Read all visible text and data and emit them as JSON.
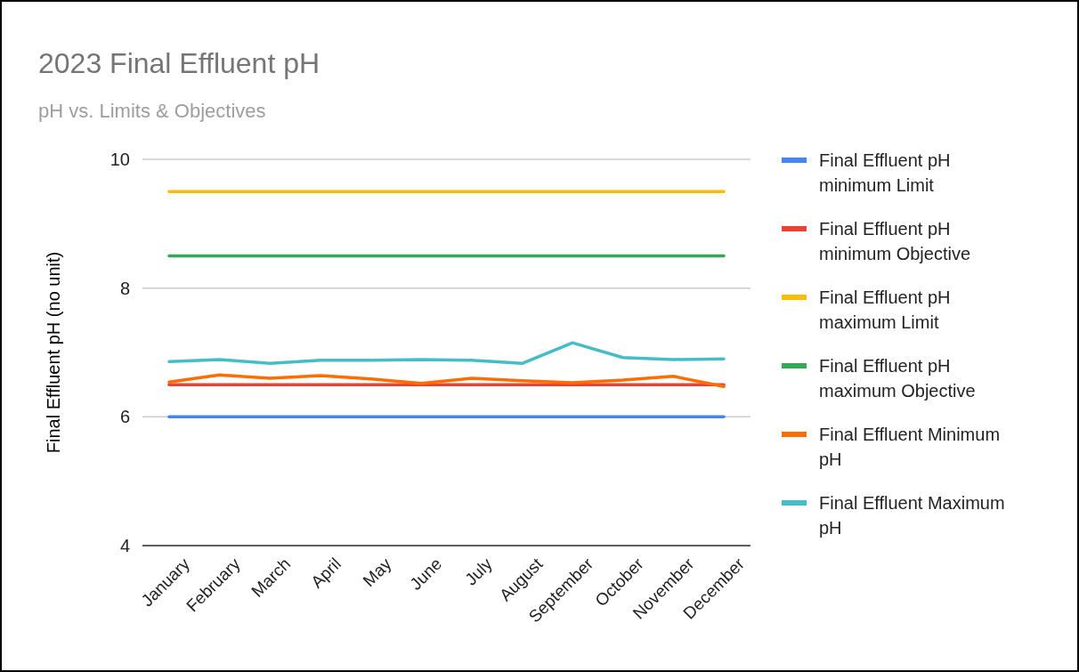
{
  "chart_data": {
    "type": "line",
    "title": "2023 Final Effluent pH",
    "subtitle": "pH vs. Limits & Objectives",
    "ylabel": "Final Effluent pH (no unit)",
    "categories": [
      "January",
      "February",
      "March",
      "April",
      "May",
      "June",
      "July",
      "August",
      "September",
      "October",
      "November",
      "December"
    ],
    "ylim": [
      4,
      10
    ],
    "yticks": [
      4,
      6,
      8,
      10
    ],
    "grid": "y",
    "legend": "right",
    "marker": "none",
    "line_style": "solid",
    "series": [
      {
        "name": "Final Effluent pH minimum Limit",
        "color": "#4285f4",
        "values": [
          6,
          6,
          6,
          6,
          6,
          6,
          6,
          6,
          6,
          6,
          6,
          6
        ]
      },
      {
        "name": "Final Effluent pH minimum Objective",
        "color": "#ea4335",
        "values": [
          6.5,
          6.5,
          6.5,
          6.5,
          6.5,
          6.5,
          6.5,
          6.5,
          6.5,
          6.5,
          6.5,
          6.5
        ]
      },
      {
        "name": "Final Effluent pH maximum Limit",
        "color": "#fbbc04",
        "values": [
          9.5,
          9.5,
          9.5,
          9.5,
          9.5,
          9.5,
          9.5,
          9.5,
          9.5,
          9.5,
          9.5,
          9.5
        ]
      },
      {
        "name": "Final Effluent pH maximum Objective",
        "color": "#34a853",
        "values": [
          8.5,
          8.5,
          8.5,
          8.5,
          8.5,
          8.5,
          8.5,
          8.5,
          8.5,
          8.5,
          8.5,
          8.5
        ]
      },
      {
        "name": "Final Effluent Minimum pH",
        "color": "#ff6d01",
        "values": [
          6.54,
          6.65,
          6.6,
          6.64,
          6.59,
          6.52,
          6.6,
          6.56,
          6.53,
          6.57,
          6.63,
          6.47
        ]
      },
      {
        "name": "Final Effluent Maximum pH",
        "color": "#46bdc6",
        "values": [
          6.86,
          6.89,
          6.83,
          6.88,
          6.88,
          6.89,
          6.88,
          6.83,
          7.15,
          6.92,
          6.89,
          6.9
        ]
      }
    ]
  }
}
